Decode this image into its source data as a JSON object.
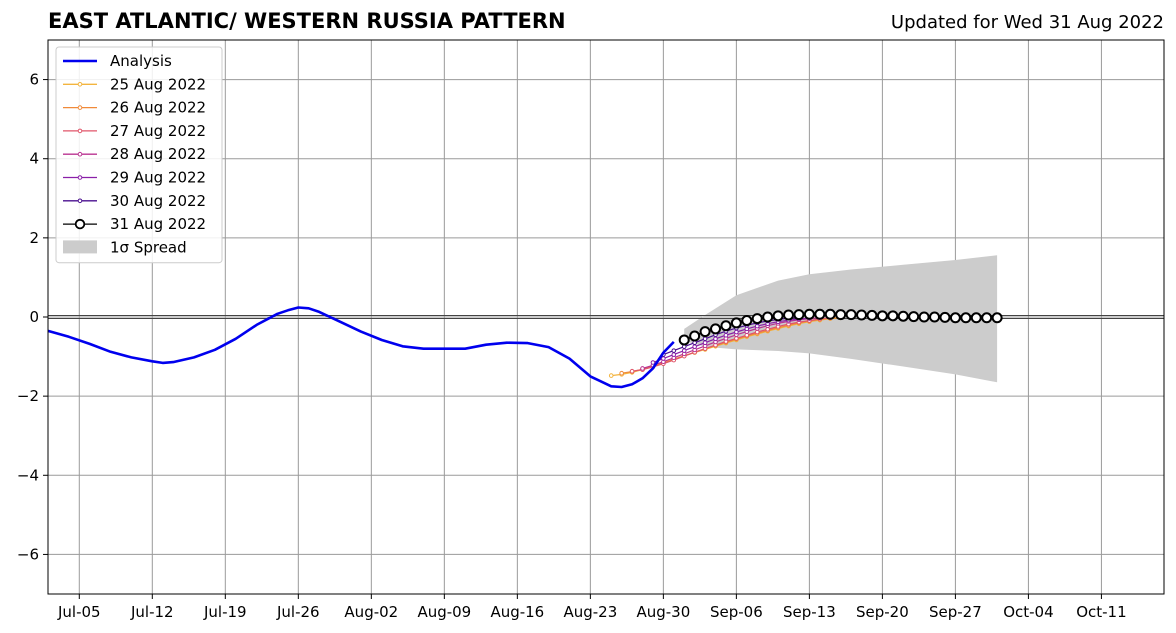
{
  "chart_data": {
    "type": "line",
    "title": "EAST ATLANTIC/ WESTERN RUSSIA PATTERN",
    "subtitle": "Updated for Wed 31 Aug 2022",
    "xlabel": "",
    "ylabel": "",
    "ylim": [
      -7,
      7
    ],
    "xlim": [
      "2022-07-02",
      "2022-10-17"
    ],
    "grid": true,
    "legend_position": "top-left",
    "x_ticks": [
      {
        "date": "2022-07-05",
        "label": "Jul-05"
      },
      {
        "date": "2022-07-12",
        "label": "Jul-12"
      },
      {
        "date": "2022-07-19",
        "label": "Jul-19"
      },
      {
        "date": "2022-07-26",
        "label": "Jul-26"
      },
      {
        "date": "2022-08-02",
        "label": "Aug-02"
      },
      {
        "date": "2022-08-09",
        "label": "Aug-09"
      },
      {
        "date": "2022-08-16",
        "label": "Aug-16"
      },
      {
        "date": "2022-08-23",
        "label": "Aug-23"
      },
      {
        "date": "2022-08-30",
        "label": "Aug-30"
      },
      {
        "date": "2022-09-06",
        "label": "Sep-06"
      },
      {
        "date": "2022-09-13",
        "label": "Sep-13"
      },
      {
        "date": "2022-09-20",
        "label": "Sep-20"
      },
      {
        "date": "2022-09-27",
        "label": "Sep-27"
      },
      {
        "date": "2022-10-04",
        "label": "Oct-04"
      },
      {
        "date": "2022-10-11",
        "label": "Oct-11"
      }
    ],
    "y_ticks": [
      {
        "value": 6,
        "label": "6"
      },
      {
        "value": 4,
        "label": "4"
      },
      {
        "value": 2,
        "label": "2"
      },
      {
        "value": 0,
        "label": "0"
      },
      {
        "value": -2,
        "label": "−2"
      },
      {
        "value": -4,
        "label": "−4"
      },
      {
        "value": -6,
        "label": "−6"
      }
    ],
    "analysis": {
      "name": "Analysis",
      "color": "#0000ee",
      "points": [
        [
          "2022-07-02",
          -0.35
        ],
        [
          "2022-07-04",
          -0.5
        ],
        [
          "2022-07-06",
          -0.68
        ],
        [
          "2022-07-08",
          -0.88
        ],
        [
          "2022-07-10",
          -1.02
        ],
        [
          "2022-07-12",
          -1.12
        ],
        [
          "2022-07-13",
          -1.16
        ],
        [
          "2022-07-14",
          -1.14
        ],
        [
          "2022-07-16",
          -1.02
        ],
        [
          "2022-07-18",
          -0.83
        ],
        [
          "2022-07-20",
          -0.55
        ],
        [
          "2022-07-22",
          -0.2
        ],
        [
          "2022-07-24",
          0.08
        ],
        [
          "2022-07-25",
          0.17
        ],
        [
          "2022-07-26",
          0.24
        ],
        [
          "2022-07-27",
          0.22
        ],
        [
          "2022-07-28",
          0.13
        ],
        [
          "2022-07-30",
          -0.12
        ],
        [
          "2022-08-01",
          -0.37
        ],
        [
          "2022-08-03",
          -0.58
        ],
        [
          "2022-08-05",
          -0.74
        ],
        [
          "2022-08-07",
          -0.8
        ],
        [
          "2022-08-09",
          -0.8
        ],
        [
          "2022-08-11",
          -0.8
        ],
        [
          "2022-08-13",
          -0.7
        ],
        [
          "2022-08-15",
          -0.65
        ],
        [
          "2022-08-17",
          -0.66
        ],
        [
          "2022-08-19",
          -0.76
        ],
        [
          "2022-08-21",
          -1.05
        ],
        [
          "2022-08-23",
          -1.5
        ],
        [
          "2022-08-25",
          -1.75
        ],
        [
          "2022-08-26",
          -1.77
        ],
        [
          "2022-08-27",
          -1.7
        ],
        [
          "2022-08-28",
          -1.55
        ],
        [
          "2022-08-29",
          -1.3
        ],
        [
          "2022-08-30",
          -0.9
        ],
        [
          "2022-08-31",
          -0.63
        ]
      ]
    },
    "series": [
      {
        "name": "25 Aug 2022",
        "color": "#f3b43e",
        "start": "2022-08-25",
        "values": [
          -1.48,
          -1.45,
          -1.4,
          -1.33,
          -1.25,
          -1.16,
          -1.07,
          -0.98,
          -0.9,
          -0.82,
          -0.74,
          -0.66,
          -0.58,
          -0.5,
          -0.43,
          -0.36,
          -0.29,
          -0.23,
          -0.17,
          -0.12,
          -0.08,
          -0.04,
          -0.02
        ]
      },
      {
        "name": "26 Aug 2022",
        "color": "#f08a3a",
        "start": "2022-08-26",
        "values": [
          -1.42,
          -1.38,
          -1.32,
          -1.25,
          -1.16,
          -1.07,
          -0.98,
          -0.89,
          -0.8,
          -0.72,
          -0.64,
          -0.56,
          -0.48,
          -0.41,
          -0.34,
          -0.27,
          -0.21,
          -0.15,
          -0.1,
          -0.06,
          -0.03,
          -0.01
        ]
      },
      {
        "name": "27 Aug 2022",
        "color": "#e0556a",
        "start": "2022-08-27",
        "values": [
          -1.37,
          -1.33,
          -1.26,
          -1.18,
          -1.09,
          -0.99,
          -0.89,
          -0.8,
          -0.71,
          -0.62,
          -0.54,
          -0.46,
          -0.38,
          -0.31,
          -0.24,
          -0.18,
          -0.13,
          -0.09,
          -0.05,
          -0.02
        ]
      },
      {
        "name": "28 Aug 2022",
        "color": "#b93391",
        "start": "2022-08-28",
        "values": [
          -1.3,
          -1.22,
          -1.13,
          -1.03,
          -0.93,
          -0.83,
          -0.73,
          -0.63,
          -0.54,
          -0.45,
          -0.37,
          -0.29,
          -0.22,
          -0.16,
          -0.11,
          -0.07,
          -0.04,
          -0.02
        ]
      },
      {
        "name": "29 Aug 2022",
        "color": "#8a1fa8",
        "start": "2022-08-29",
        "values": [
          -1.15,
          -1.05,
          -0.95,
          -0.85,
          -0.75,
          -0.65,
          -0.55,
          -0.46,
          -0.38,
          -0.3,
          -0.23,
          -0.17,
          -0.12,
          -0.08,
          -0.05,
          -0.03
        ]
      },
      {
        "name": "30 Aug 2022",
        "color": "#4a0f8f",
        "start": "2022-08-30",
        "values": [
          -0.95,
          -0.85,
          -0.75,
          -0.65,
          -0.55,
          -0.45,
          -0.36,
          -0.28,
          -0.21,
          -0.15,
          -0.1,
          -0.06,
          -0.03,
          -0.01
        ]
      },
      {
        "name": "31 Aug 2022",
        "color": "#000000",
        "start": "2022-09-01",
        "values": [
          -0.58,
          -0.48,
          -0.37,
          -0.3,
          -0.22,
          -0.15,
          -0.09,
          -0.04,
          0.0,
          0.03,
          0.05,
          0.06,
          0.07,
          0.07,
          0.07,
          0.06,
          0.06,
          0.05,
          0.04,
          0.03,
          0.03,
          0.02,
          0.01,
          0.0,
          0.0,
          -0.01,
          -0.02,
          -0.02,
          -0.02,
          -0.02,
          -0.02
        ]
      }
    ],
    "spread": {
      "name": "1σ Spread",
      "color": "#cccccc",
      "points": [
        [
          "2022-09-01",
          -0.3,
          -0.6
        ],
        [
          "2022-09-03",
          0.05,
          -0.75
        ],
        [
          "2022-09-06",
          0.55,
          -0.82
        ],
        [
          "2022-09-10",
          0.92,
          -0.86
        ],
        [
          "2022-09-13",
          1.08,
          -0.92
        ],
        [
          "2022-09-17",
          1.2,
          -1.06
        ],
        [
          "2022-09-22",
          1.32,
          -1.25
        ],
        [
          "2022-09-27",
          1.44,
          -1.45
        ],
        [
          "2022-10-01",
          1.56,
          -1.65
        ]
      ]
    }
  }
}
